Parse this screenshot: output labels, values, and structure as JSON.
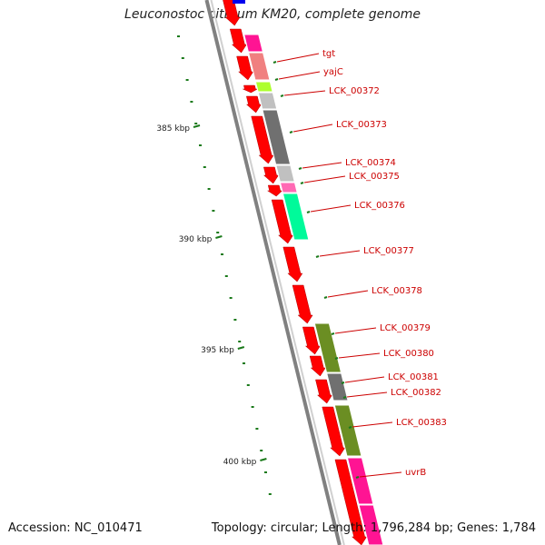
{
  "title": "Leuconostoc citreum KM20, complete genome",
  "footer": {
    "accession": "Accession: NC_010471",
    "summary": "Topology: circular; Length: 1,796,284 bp; Genes: 1,784"
  },
  "colors": {
    "cds": "#ff0000",
    "backbone": "#808080",
    "ruler_dots": "#1a7a1a",
    "label": "#cc0000",
    "ruler_text": "#222222"
  },
  "scale_marks": [
    {
      "label": "385 kbp",
      "kbp": 385
    },
    {
      "label": "390 kbp",
      "kbp": 390
    },
    {
      "label": "395 kbp",
      "kbp": 395
    },
    {
      "label": "400 kbp",
      "kbp": 400
    }
  ],
  "gene_labels": [
    {
      "name": "tgt",
      "color": "#ff1493"
    },
    {
      "name": "yajC",
      "color": "#f08080"
    },
    {
      "name": "LCK_00372",
      "color": "#adff2f"
    },
    {
      "name": "LCK_00373",
      "color": "#707070"
    },
    {
      "name": "LCK_00374",
      "color": "#c0c0c0"
    },
    {
      "name": "LCK_00375",
      "color": "#ff1493"
    },
    {
      "name": "LCK_00376",
      "color": "#00fa9a"
    },
    {
      "name": "LCK_00377",
      "color": ""
    },
    {
      "name": "LCK_00378",
      "color": ""
    },
    {
      "name": "LCK_00379",
      "color": "#6b8e23"
    },
    {
      "name": "LCK_00380",
      "color": "#6b8e23"
    },
    {
      "name": "LCK_00381",
      "color": "#707070"
    },
    {
      "name": "LCK_00382",
      "color": ""
    },
    {
      "name": "LCK_00383",
      "color": "#6b8e23"
    },
    {
      "name": "uvrB",
      "color": "#ff1493"
    }
  ]
}
